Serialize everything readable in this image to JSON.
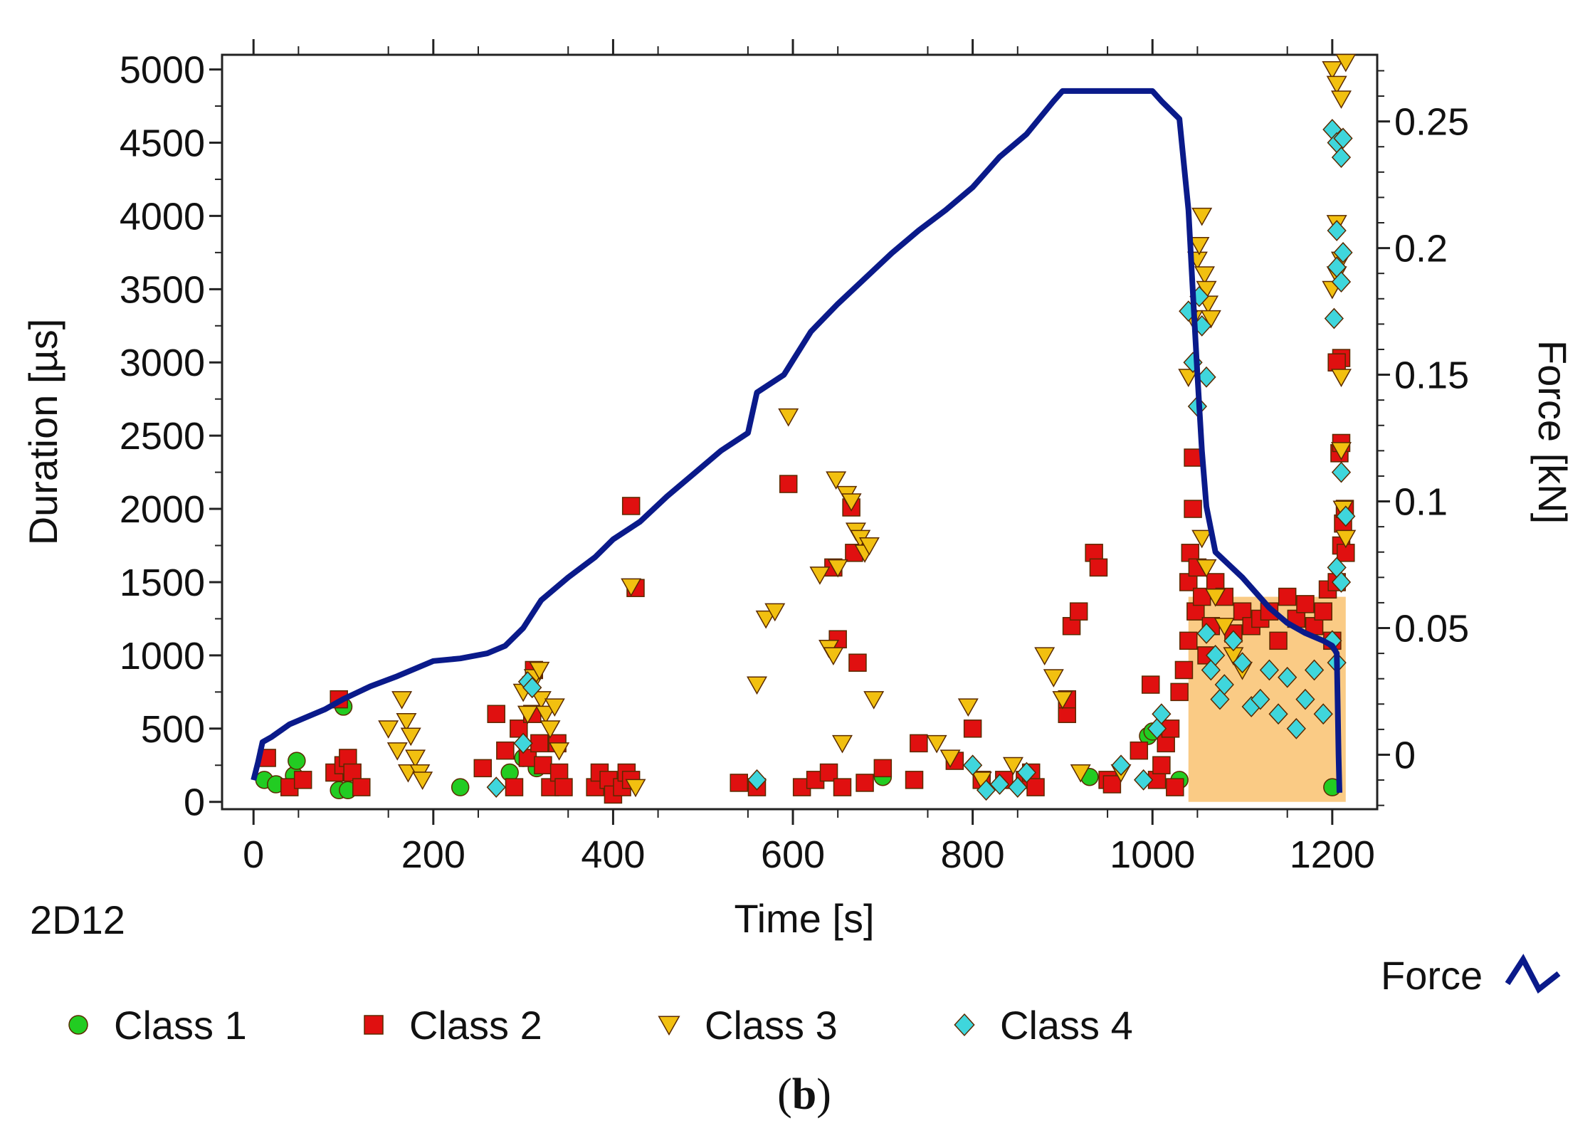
{
  "chart_data": {
    "type": "scatter",
    "panel_label": "(b)",
    "panel_label_parts": [
      "(",
      "b",
      ")"
    ],
    "specimen": "2D12",
    "xlabel": "Time [s]",
    "ylabel": "Duration [µs]",
    "y2label": "Force [kN]",
    "xlim": [
      -35,
      1250
    ],
    "ylim": [
      -50,
      5100
    ],
    "y2lim": [
      -0.0215,
      0.2763
    ],
    "x_ticks": [
      0,
      200,
      400,
      600,
      800,
      1000,
      1200
    ],
    "x_tick_labels": [
      "0",
      "200",
      "400",
      "600",
      "800",
      "1000",
      "1200"
    ],
    "y_ticks": [
      0,
      500,
      1000,
      1500,
      2000,
      2500,
      3000,
      3500,
      4000,
      4500,
      5000
    ],
    "y_tick_labels": [
      "0",
      "500",
      "1000",
      "1500",
      "2000",
      "2500",
      "3000",
      "3500",
      "4000",
      "4500",
      "5000"
    ],
    "y2_ticks": [
      0,
      0.05,
      0.1,
      0.15,
      0.2,
      0.25
    ],
    "y2_tick_labels": [
      "0",
      "0.05",
      "0.1",
      "0.15",
      "0.2",
      "0.25"
    ],
    "legend": {
      "placement": "bottom",
      "items": [
        {
          "name": "Class 1",
          "marker": "circle",
          "color": "#22cc22"
        },
        {
          "name": "Class 2",
          "marker": "square",
          "color": "#e01010"
        },
        {
          "name": "Class 3",
          "marker": "triangle-down",
          "color": "#f2c010"
        },
        {
          "name": "Class 4",
          "marker": "diamond",
          "color": "#3fd6dc"
        }
      ],
      "line_label": "Force",
      "line_color": "#0a1a8a"
    },
    "series": [
      {
        "name": "Class 1",
        "marker": "circle",
        "color": "#22cc22",
        "points": [
          [
            12,
            150
          ],
          [
            25,
            120
          ],
          [
            45,
            180
          ],
          [
            48,
            280
          ],
          [
            95,
            80
          ],
          [
            105,
            80
          ],
          [
            100,
            650
          ],
          [
            230,
            100
          ],
          [
            285,
            200
          ],
          [
            300,
            300
          ],
          [
            315,
            230
          ],
          [
            700,
            170
          ],
          [
            930,
            170
          ],
          [
            995,
            450
          ],
          [
            1000,
            480
          ],
          [
            1030,
            150
          ],
          [
            1200,
            100
          ]
        ]
      },
      {
        "name": "Class 2",
        "marker": "square",
        "color": "#e01010",
        "points": [
          [
            15,
            300
          ],
          [
            40,
            100
          ],
          [
            55,
            150
          ],
          [
            90,
            200
          ],
          [
            95,
            700
          ],
          [
            100,
            250
          ],
          [
            105,
            300
          ],
          [
            110,
            200
          ],
          [
            120,
            100
          ],
          [
            255,
            230
          ],
          [
            270,
            600
          ],
          [
            280,
            350
          ],
          [
            290,
            100
          ],
          [
            295,
            500
          ],
          [
            305,
            300
          ],
          [
            310,
            600
          ],
          [
            312,
            900
          ],
          [
            318,
            400
          ],
          [
            322,
            250
          ],
          [
            330,
            100
          ],
          [
            338,
            400
          ],
          [
            340,
            200
          ],
          [
            345,
            100
          ],
          [
            380,
            100
          ],
          [
            385,
            200
          ],
          [
            395,
            150
          ],
          [
            400,
            50
          ],
          [
            410,
            100
          ],
          [
            415,
            200
          ],
          [
            420,
            150
          ],
          [
            420,
            2020
          ],
          [
            425,
            1460
          ],
          [
            540,
            130
          ],
          [
            560,
            100
          ],
          [
            595,
            2170
          ],
          [
            610,
            100
          ],
          [
            625,
            150
          ],
          [
            640,
            200
          ],
          [
            645,
            1600
          ],
          [
            650,
            1110
          ],
          [
            655,
            100
          ],
          [
            665,
            2010
          ],
          [
            668,
            1700
          ],
          [
            672,
            950
          ],
          [
            680,
            130
          ],
          [
            700,
            230
          ],
          [
            735,
            150
          ],
          [
            740,
            400
          ],
          [
            780,
            280
          ],
          [
            800,
            500
          ],
          [
            810,
            150
          ],
          [
            835,
            150
          ],
          [
            858,
            150
          ],
          [
            865,
            200
          ],
          [
            870,
            100
          ],
          [
            905,
            600
          ],
          [
            905,
            700
          ],
          [
            910,
            1200
          ],
          [
            918,
            1300
          ],
          [
            935,
            1700
          ],
          [
            940,
            1600
          ],
          [
            950,
            150
          ],
          [
            955,
            120
          ],
          [
            985,
            350
          ],
          [
            998,
            800
          ],
          [
            1005,
            150
          ],
          [
            1010,
            250
          ],
          [
            1015,
            400
          ],
          [
            1020,
            500
          ],
          [
            1025,
            100
          ],
          [
            1030,
            750
          ],
          [
            1035,
            900
          ],
          [
            1040,
            1100
          ],
          [
            1040,
            1500
          ],
          [
            1042,
            1700
          ],
          [
            1045,
            2000
          ],
          [
            1045,
            2350
          ],
          [
            1048,
            1300
          ],
          [
            1050,
            1600
          ],
          [
            1055,
            1400
          ],
          [
            1060,
            1000
          ],
          [
            1065,
            1200
          ],
          [
            1070,
            1500
          ],
          [
            1080,
            1400
          ],
          [
            1090,
            1150
          ],
          [
            1100,
            1300
          ],
          [
            1110,
            1200
          ],
          [
            1120,
            1250
          ],
          [
            1130,
            1300
          ],
          [
            1140,
            1100
          ],
          [
            1150,
            1400
          ],
          [
            1160,
            1250
          ],
          [
            1170,
            1350
          ],
          [
            1180,
            1200
          ],
          [
            1190,
            1300
          ],
          [
            1195,
            1450
          ],
          [
            1200,
            1100
          ],
          [
            1205,
            1500
          ],
          [
            1210,
            1750
          ],
          [
            1212,
            1900
          ],
          [
            1214,
            2000
          ],
          [
            1215,
            1700
          ],
          [
            1208,
            2380
          ],
          [
            1210,
            3030
          ],
          [
            1205,
            3000
          ],
          [
            1210,
            2450
          ]
        ]
      },
      {
        "name": "Class 3",
        "marker": "triangle-down",
        "color": "#f2c010",
        "points": [
          [
            150,
            500
          ],
          [
            160,
            350
          ],
          [
            165,
            700
          ],
          [
            170,
            550
          ],
          [
            172,
            200
          ],
          [
            175,
            450
          ],
          [
            180,
            300
          ],
          [
            185,
            200
          ],
          [
            188,
            150
          ],
          [
            300,
            750
          ],
          [
            305,
            600
          ],
          [
            310,
            800
          ],
          [
            312,
            850
          ],
          [
            318,
            900
          ],
          [
            320,
            700
          ],
          [
            325,
            600
          ],
          [
            330,
            500
          ],
          [
            335,
            650
          ],
          [
            340,
            350
          ],
          [
            420,
            1470
          ],
          [
            425,
            100
          ],
          [
            560,
            800
          ],
          [
            570,
            1250
          ],
          [
            580,
            1300
          ],
          [
            595,
            2630
          ],
          [
            630,
            1550
          ],
          [
            640,
            1050
          ],
          [
            645,
            1000
          ],
          [
            648,
            2200
          ],
          [
            650,
            1600
          ],
          [
            655,
            400
          ],
          [
            660,
            2100
          ],
          [
            665,
            2050
          ],
          [
            670,
            1850
          ],
          [
            675,
            1800
          ],
          [
            680,
            1700
          ],
          [
            685,
            1750
          ],
          [
            690,
            700
          ],
          [
            760,
            400
          ],
          [
            775,
            300
          ],
          [
            795,
            650
          ],
          [
            810,
            150
          ],
          [
            845,
            250
          ],
          [
            880,
            1000
          ],
          [
            890,
            850
          ],
          [
            900,
            700
          ],
          [
            920,
            200
          ],
          [
            965,
            200
          ],
          [
            1040,
            2900
          ],
          [
            1045,
            3300
          ],
          [
            1050,
            3700
          ],
          [
            1052,
            3800
          ],
          [
            1055,
            4000
          ],
          [
            1058,
            3600
          ],
          [
            1060,
            3500
          ],
          [
            1062,
            3400
          ],
          [
            1065,
            3300
          ],
          [
            1055,
            1800
          ],
          [
            1060,
            1600
          ],
          [
            1070,
            1400
          ],
          [
            1080,
            1200
          ],
          [
            1090,
            1000
          ],
          [
            1100,
            900
          ],
          [
            1200,
            5000
          ],
          [
            1205,
            4900
          ],
          [
            1210,
            4800
          ],
          [
            1215,
            5050
          ],
          [
            1200,
            3500
          ],
          [
            1205,
            3950
          ],
          [
            1210,
            3700
          ],
          [
            1205,
            3600
          ],
          [
            1210,
            2400
          ],
          [
            1212,
            2000
          ],
          [
            1215,
            1800
          ],
          [
            1210,
            2900
          ]
        ]
      },
      {
        "name": "Class 4",
        "marker": "diamond",
        "color": "#3fd6dc",
        "points": [
          [
            270,
            100
          ],
          [
            300,
            400
          ],
          [
            305,
            820
          ],
          [
            310,
            780
          ],
          [
            560,
            150
          ],
          [
            800,
            250
          ],
          [
            815,
            80
          ],
          [
            830,
            120
          ],
          [
            850,
            100
          ],
          [
            860,
            200
          ],
          [
            965,
            250
          ],
          [
            990,
            150
          ],
          [
            1005,
            500
          ],
          [
            1010,
            600
          ],
          [
            1040,
            3350
          ],
          [
            1045,
            3000
          ],
          [
            1050,
            2700
          ],
          [
            1052,
            3450
          ],
          [
            1055,
            3250
          ],
          [
            1060,
            2900
          ],
          [
            1060,
            1150
          ],
          [
            1065,
            900
          ],
          [
            1070,
            1000
          ],
          [
            1075,
            700
          ],
          [
            1080,
            800
          ],
          [
            1090,
            1100
          ],
          [
            1100,
            950
          ],
          [
            1110,
            650
          ],
          [
            1120,
            700
          ],
          [
            1130,
            900
          ],
          [
            1140,
            600
          ],
          [
            1150,
            850
          ],
          [
            1160,
            500
          ],
          [
            1170,
            700
          ],
          [
            1180,
            900
          ],
          [
            1190,
            600
          ],
          [
            1200,
            4590
          ],
          [
            1205,
            4500
          ],
          [
            1210,
            4400
          ],
          [
            1212,
            4530
          ],
          [
            1205,
            3650
          ],
          [
            1210,
            3550
          ],
          [
            1202,
            3300
          ],
          [
            1205,
            3900
          ],
          [
            1212,
            3750
          ],
          [
            1210,
            2250
          ],
          [
            1215,
            1950
          ],
          [
            1205,
            1600
          ],
          [
            1210,
            1500
          ],
          [
            1200,
            1100
          ],
          [
            1205,
            950
          ]
        ]
      }
    ],
    "force_series": {
      "name": "Force",
      "color": "#0a1a8a",
      "points": [
        [
          0,
          -0.01
        ],
        [
          5,
          -0.003
        ],
        [
          10,
          0.005
        ],
        [
          20,
          0.007
        ],
        [
          40,
          0.012
        ],
        [
          60,
          0.015
        ],
        [
          80,
          0.018
        ],
        [
          100,
          0.022
        ],
        [
          130,
          0.027
        ],
        [
          160,
          0.031
        ],
        [
          200,
          0.037
        ],
        [
          230,
          0.038
        ],
        [
          260,
          0.04
        ],
        [
          280,
          0.043
        ],
        [
          300,
          0.05
        ],
        [
          320,
          0.061
        ],
        [
          350,
          0.07
        ],
        [
          380,
          0.078
        ],
        [
          400,
          0.085
        ],
        [
          430,
          0.092
        ],
        [
          460,
          0.102
        ],
        [
          490,
          0.111
        ],
        [
          520,
          0.12
        ],
        [
          550,
          0.127
        ],
        [
          560,
          0.143
        ],
        [
          590,
          0.15
        ],
        [
          620,
          0.167
        ],
        [
          650,
          0.178
        ],
        [
          680,
          0.188
        ],
        [
          710,
          0.198
        ],
        [
          740,
          0.207
        ],
        [
          770,
          0.215
        ],
        [
          800,
          0.224
        ],
        [
          830,
          0.236
        ],
        [
          860,
          0.245
        ],
        [
          890,
          0.258
        ],
        [
          900,
          0.262
        ],
        [
          1000,
          0.262
        ],
        [
          1010,
          0.258
        ],
        [
          1030,
          0.251
        ],
        [
          1040,
          0.215
        ],
        [
          1045,
          0.182
        ],
        [
          1050,
          0.15
        ],
        [
          1055,
          0.12
        ],
        [
          1060,
          0.098
        ],
        [
          1070,
          0.08
        ],
        [
          1085,
          0.075
        ],
        [
          1100,
          0.07
        ],
        [
          1130,
          0.058
        ],
        [
          1150,
          0.052
        ],
        [
          1170,
          0.048
        ],
        [
          1190,
          0.045
        ],
        [
          1200,
          0.043
        ],
        [
          1205,
          0.04
        ],
        [
          1207,
          0.0
        ],
        [
          1208,
          -0.015
        ]
      ]
    }
  }
}
